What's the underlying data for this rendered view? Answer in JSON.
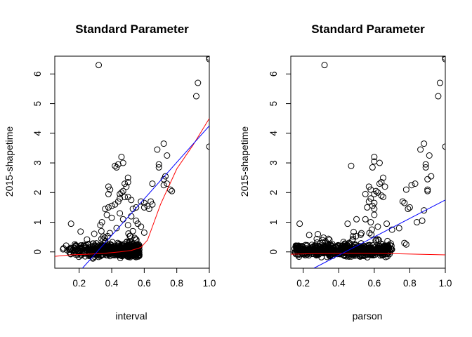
{
  "chart_data": [
    {
      "type": "scatter",
      "title": "Standard Parameter",
      "xlabel": "interval",
      "ylabel": "2015-shapetime",
      "xlim": [
        0.05,
        1.0
      ],
      "ylim": [
        -0.55,
        6.6
      ],
      "xticks": [
        "0.2",
        "0.4",
        "0.6",
        "0.8",
        "1.0"
      ],
      "yticks": [
        "0",
        "1",
        "2",
        "3",
        "4",
        "5",
        "6"
      ],
      "grid": false,
      "legend": "none",
      "colors": {
        "points": "#000000",
        "linear_fit": "#0000ff",
        "smooth_fit": "#ff0000"
      },
      "linear_fit": {
        "x": [
          0.22,
          1.0
        ],
        "y": [
          -0.55,
          4.25
        ]
      },
      "smooth_fit": {
        "x": [
          0.05,
          0.15,
          0.25,
          0.35,
          0.45,
          0.52,
          0.58,
          0.62,
          0.66,
          0.7,
          0.75,
          0.8,
          0.9,
          1.0
        ],
        "y": [
          -0.15,
          -0.1,
          -0.08,
          -0.05,
          0.0,
          0.05,
          0.15,
          0.4,
          1.0,
          1.6,
          2.2,
          2.8,
          3.6,
          4.5
        ]
      },
      "points": {
        "outliers": [
          [
            1.0,
            6.55
          ],
          [
            1.0,
            6.5
          ],
          [
            0.32,
            6.3
          ],
          [
            0.93,
            5.7
          ],
          [
            0.92,
            5.25
          ],
          [
            1.0,
            3.55
          ],
          [
            0.72,
            3.65
          ],
          [
            0.68,
            3.45
          ],
          [
            0.74,
            3.25
          ],
          [
            0.46,
            3.2
          ],
          [
            0.47,
            3.0
          ],
          [
            0.44,
            2.95
          ],
          [
            0.42,
            2.9
          ],
          [
            0.43,
            2.85
          ],
          [
            0.69,
            2.95
          ],
          [
            0.69,
            2.85
          ],
          [
            0.73,
            2.55
          ],
          [
            0.72,
            2.45
          ],
          [
            0.74,
            2.3
          ],
          [
            0.72,
            2.25
          ],
          [
            0.76,
            2.1
          ],
          [
            0.77,
            2.05
          ],
          [
            0.65,
            2.3
          ],
          [
            0.38,
            2.2
          ],
          [
            0.39,
            2.1
          ],
          [
            0.38,
            1.95
          ],
          [
            0.5,
            2.5
          ],
          [
            0.5,
            2.35
          ],
          [
            0.48,
            2.3
          ],
          [
            0.49,
            2.2
          ],
          [
            0.47,
            2.05
          ],
          [
            0.46,
            2.0
          ],
          [
            0.45,
            1.95
          ],
          [
            0.48,
            1.85
          ],
          [
            0.5,
            1.85
          ],
          [
            0.45,
            1.8
          ],
          [
            0.44,
            1.7
          ],
          [
            0.52,
            1.75
          ],
          [
            0.58,
            1.7
          ],
          [
            0.6,
            1.65
          ],
          [
            0.64,
            1.7
          ],
          [
            0.65,
            1.6
          ],
          [
            0.62,
            1.55
          ],
          [
            0.63,
            1.45
          ],
          [
            0.6,
            1.5
          ],
          [
            0.55,
            1.5
          ],
          [
            0.53,
            1.45
          ],
          [
            0.42,
            1.6
          ],
          [
            0.4,
            1.55
          ],
          [
            0.38,
            1.5
          ],
          [
            0.36,
            1.45
          ],
          [
            0.37,
            1.25
          ],
          [
            0.45,
            1.3
          ],
          [
            0.4,
            1.15
          ],
          [
            0.47,
            1.1
          ],
          [
            0.52,
            1.2
          ],
          [
            0.55,
            1.05
          ],
          [
            0.56,
            0.95
          ],
          [
            0.6,
            0.65
          ],
          [
            0.58,
            0.85
          ],
          [
            0.53,
            0.7
          ],
          [
            0.15,
            0.95
          ],
          [
            0.34,
            1.0
          ],
          [
            0.33,
            0.9
          ],
          [
            0.43,
            0.8
          ],
          [
            0.5,
            0.9
          ]
        ],
        "cluster": {
          "n": 620,
          "x_range": [
            0.05,
            0.57
          ],
          "y_center": 0.05
        }
      }
    },
    {
      "type": "scatter",
      "title": "Standard Parameter",
      "xlabel": "parson",
      "ylabel": "2015-shapetime",
      "xlim": [
        0.13,
        1.0
      ],
      "ylim": [
        -0.55,
        6.6
      ],
      "xticks": [
        "0.2",
        "0.4",
        "0.6",
        "0.8",
        "1.0"
      ],
      "yticks": [
        "0",
        "1",
        "2",
        "3",
        "4",
        "5",
        "6"
      ],
      "grid": false,
      "legend": "none",
      "colors": {
        "points": "#000000",
        "linear_fit": "#0000ff",
        "smooth_fit": "#ff0000"
      },
      "linear_fit": {
        "x": [
          0.26,
          1.0
        ],
        "y": [
          -0.55,
          1.75
        ]
      },
      "smooth_fit": {
        "x": [
          0.13,
          0.25,
          0.4,
          0.55,
          0.7,
          0.85,
          1.0
        ],
        "y": [
          -0.08,
          -0.06,
          -0.05,
          -0.05,
          -0.06,
          -0.08,
          -0.1
        ]
      },
      "points": {
        "outliers": [
          [
            1.0,
            6.55
          ],
          [
            1.0,
            6.5
          ],
          [
            0.32,
            6.3
          ],
          [
            0.97,
            5.7
          ],
          [
            0.96,
            5.25
          ],
          [
            1.0,
            3.55
          ],
          [
            0.88,
            3.65
          ],
          [
            0.86,
            3.45
          ],
          [
            0.91,
            3.25
          ],
          [
            0.6,
            3.2
          ],
          [
            0.6,
            3.05
          ],
          [
            0.59,
            2.85
          ],
          [
            0.63,
            3.0
          ],
          [
            0.47,
            2.9
          ],
          [
            0.89,
            2.95
          ],
          [
            0.89,
            2.85
          ],
          [
            0.92,
            2.55
          ],
          [
            0.9,
            2.45
          ],
          [
            0.83,
            2.3
          ],
          [
            0.81,
            2.25
          ],
          [
            0.9,
            2.1
          ],
          [
            0.9,
            2.05
          ],
          [
            0.78,
            2.1
          ],
          [
            0.57,
            2.2
          ],
          [
            0.58,
            2.1
          ],
          [
            0.6,
            1.95
          ],
          [
            0.65,
            2.5
          ],
          [
            0.64,
            2.35
          ],
          [
            0.63,
            2.3
          ],
          [
            0.66,
            2.2
          ],
          [
            0.61,
            2.05
          ],
          [
            0.62,
            2.0
          ],
          [
            0.55,
            1.95
          ],
          [
            0.64,
            1.9
          ],
          [
            0.65,
            1.85
          ],
          [
            0.58,
            1.8
          ],
          [
            0.57,
            1.7
          ],
          [
            0.6,
            1.65
          ],
          [
            0.76,
            1.7
          ],
          [
            0.77,
            1.65
          ],
          [
            0.8,
            1.5
          ],
          [
            0.79,
            1.45
          ],
          [
            0.59,
            1.55
          ],
          [
            0.6,
            1.45
          ],
          [
            0.56,
            1.5
          ],
          [
            0.88,
            1.4
          ],
          [
            0.87,
            1.05
          ],
          [
            0.84,
            1.0
          ],
          [
            0.6,
            1.25
          ],
          [
            0.55,
            1.1
          ],
          [
            0.58,
            1.0
          ],
          [
            0.5,
            1.1
          ],
          [
            0.62,
            0.85
          ],
          [
            0.67,
            0.95
          ],
          [
            0.7,
            0.75
          ],
          [
            0.74,
            0.8
          ],
          [
            0.77,
            0.3
          ],
          [
            0.78,
            0.25
          ],
          [
            0.18,
            0.95
          ],
          [
            0.45,
            0.95
          ]
        ],
        "cluster": {
          "n": 620,
          "x_range": [
            0.15,
            0.7
          ],
          "y_center": 0.05
        }
      }
    }
  ]
}
